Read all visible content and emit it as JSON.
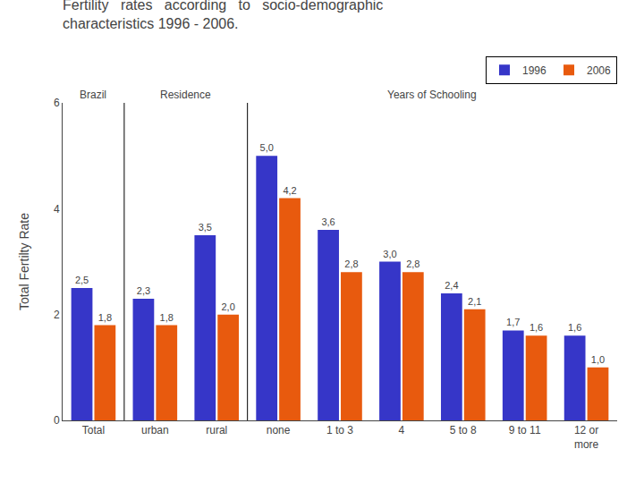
{
  "chart_data": {
    "type": "bar",
    "title": "Fertility   rates   according   to   socio-demographic\ncharacteristics 1996 - 2006.",
    "ylabel": "Total Fertilty Rate",
    "categories": [
      "Total",
      "urban",
      "rural",
      "none",
      "1 to 3",
      "4",
      "5 to 8",
      "9 to 11",
      "12 or\nmore"
    ],
    "series": [
      {
        "name": "1996",
        "color": "#3636C8",
        "values": [
          2.5,
          2.3,
          3.5,
          5.0,
          3.6,
          3.0,
          2.4,
          1.7,
          1.6
        ],
        "value_labels": [
          "2,5",
          "2,3",
          "3,5",
          "5,0",
          "3,6",
          "3,0",
          "2,4",
          "1,7",
          "1,6"
        ]
      },
      {
        "name": "2006",
        "color": "#E85A0E",
        "values": [
          1.8,
          1.8,
          2.0,
          4.2,
          2.8,
          2.8,
          2.1,
          1.6,
          1.0
        ],
        "value_labels": [
          "1,8",
          "1,8",
          "2,0",
          "4,2",
          "2,8",
          "2,8",
          "2,1",
          "1,6",
          "1,0"
        ]
      }
    ],
    "annotations": [
      "Brazil",
      "Residence",
      "Years of Schooling"
    ],
    "ylim": [
      0,
      6
    ],
    "yticks": [
      0,
      2,
      4,
      6
    ],
    "grid": false,
    "legend": "upper right",
    "data_labels": true
  }
}
